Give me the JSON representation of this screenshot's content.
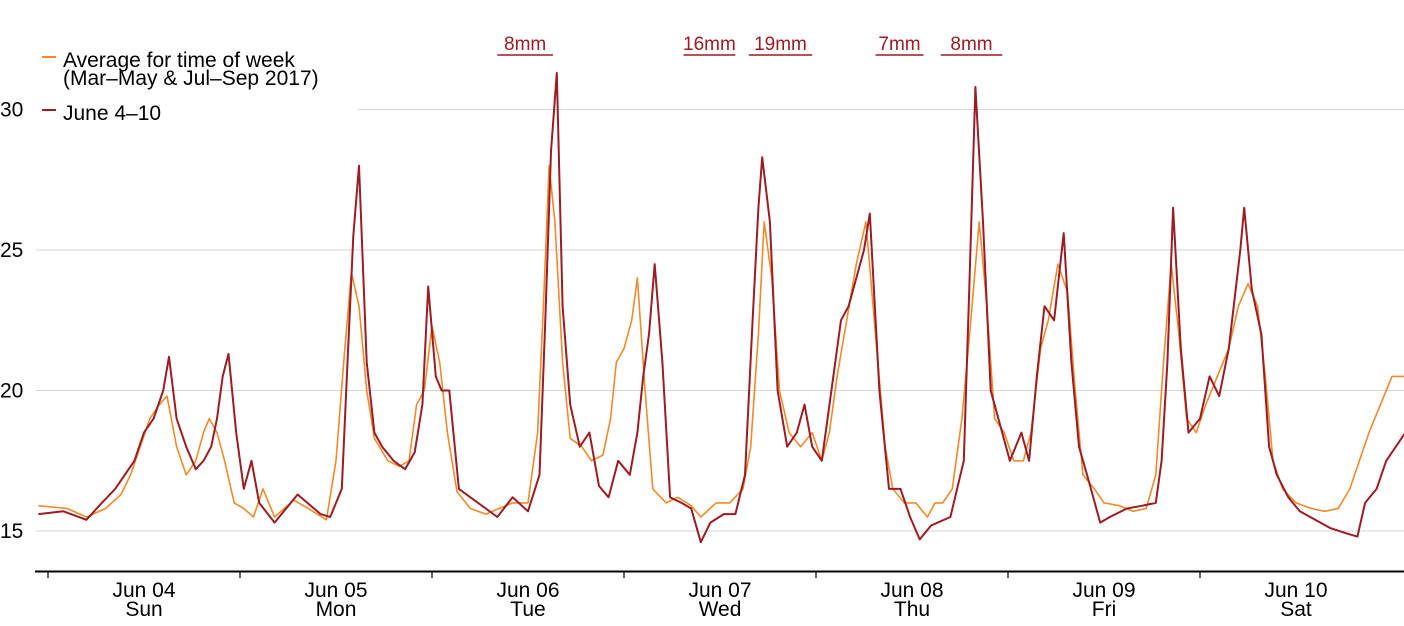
{
  "chart_data": {
    "type": "line",
    "title": "",
    "xlabel": "",
    "ylabel": "",
    "ylim": [
      13.6,
      33.5
    ],
    "xlim": [
      -0.58,
      6.65
    ],
    "y_ticks": [
      15,
      20,
      25,
      30
    ],
    "grid": "horizontal",
    "legend_placement": "top-left",
    "x_ticks": [
      {
        "x": 0,
        "date": "Jun 04",
        "day": "Sun"
      },
      {
        "x": 1,
        "date": "Jun 05",
        "day": "Mon"
      },
      {
        "x": 2,
        "date": "Jun 06",
        "day": "Tue"
      },
      {
        "x": 3,
        "date": "Jun 07",
        "day": "Wed"
      },
      {
        "x": 4,
        "date": "Jun 08",
        "day": "Thu"
      },
      {
        "x": 5,
        "date": "Jun 09",
        "day": "Fri"
      },
      {
        "x": 6,
        "date": "Jun 10",
        "day": "Sat"
      }
    ],
    "rain_annotations": [
      {
        "label": "8mm",
        "x_start": 1.84,
        "x_end": 2.13
      },
      {
        "label": "16mm",
        "x_start": 2.81,
        "x_end": 3.08
      },
      {
        "label": "19mm",
        "x_start": 3.15,
        "x_end": 3.48
      },
      {
        "label": "7mm",
        "x_start": 3.81,
        "x_end": 4.06
      },
      {
        "label": "8mm",
        "x_start": 4.15,
        "x_end": 4.47
      }
    ],
    "series": [
      {
        "name": "Average for time of week",
        "name_line2": "(Mar–May & Jul–Sep 2017)",
        "color": "#f08a2c",
        "points": [
          [
            -0.55,
            15.9
          ],
          [
            -0.4,
            15.8
          ],
          [
            -0.3,
            15.5
          ],
          [
            -0.2,
            15.8
          ],
          [
            -0.12,
            16.3
          ],
          [
            -0.07,
            17.0
          ],
          [
            -0.02,
            18.0
          ],
          [
            0.03,
            19.0
          ],
          [
            0.08,
            19.5
          ],
          [
            0.12,
            19.8
          ],
          [
            0.17,
            18.0
          ],
          [
            0.22,
            17.0
          ],
          [
            0.27,
            17.5
          ],
          [
            0.31,
            18.5
          ],
          [
            0.34,
            19.0
          ],
          [
            0.38,
            18.5
          ],
          [
            0.42,
            17.5
          ],
          [
            0.47,
            16.0
          ],
          [
            0.52,
            15.8
          ],
          [
            0.57,
            15.5
          ],
          [
            0.62,
            16.5
          ],
          [
            0.68,
            15.5
          ],
          [
            0.78,
            16.1
          ],
          [
            0.88,
            15.7
          ],
          [
            0.95,
            15.4
          ],
          [
            1.0,
            17.5
          ],
          [
            1.04,
            21.0
          ],
          [
            1.08,
            24.2
          ],
          [
            1.12,
            23.0
          ],
          [
            1.16,
            20.0
          ],
          [
            1.2,
            18.3
          ],
          [
            1.27,
            17.5
          ],
          [
            1.33,
            17.3
          ],
          [
            1.38,
            17.5
          ],
          [
            1.42,
            19.5
          ],
          [
            1.46,
            20.0
          ],
          [
            1.5,
            22.3
          ],
          [
            1.54,
            21.0
          ],
          [
            1.58,
            18.5
          ],
          [
            1.63,
            16.4
          ],
          [
            1.7,
            15.8
          ],
          [
            1.78,
            15.6
          ],
          [
            1.85,
            15.8
          ],
          [
            1.92,
            16.0
          ],
          [
            2.0,
            16.0
          ],
          [
            2.05,
            18.5
          ],
          [
            2.08,
            23.0
          ],
          [
            2.11,
            28.0
          ],
          [
            2.14,
            26.0
          ],
          [
            2.18,
            21.0
          ],
          [
            2.22,
            18.3
          ],
          [
            2.28,
            18.0
          ],
          [
            2.33,
            17.5
          ],
          [
            2.39,
            17.7
          ],
          [
            2.43,
            19.0
          ],
          [
            2.46,
            21.0
          ],
          [
            2.5,
            21.5
          ],
          [
            2.54,
            22.5
          ],
          [
            2.57,
            24.0
          ],
          [
            2.61,
            20.0
          ],
          [
            2.65,
            16.5
          ],
          [
            2.72,
            16.0
          ],
          [
            2.78,
            16.2
          ],
          [
            2.85,
            15.9
          ],
          [
            2.9,
            15.5
          ],
          [
            2.98,
            16.0
          ],
          [
            3.05,
            16.0
          ],
          [
            3.12,
            16.5
          ],
          [
            3.16,
            18.0
          ],
          [
            3.2,
            22.0
          ],
          [
            3.23,
            26.0
          ],
          [
            3.27,
            24.0
          ],
          [
            3.31,
            20.0
          ],
          [
            3.36,
            18.5
          ],
          [
            3.42,
            18.0
          ],
          [
            3.48,
            18.5
          ],
          [
            3.53,
            17.5
          ],
          [
            3.57,
            18.5
          ],
          [
            3.61,
            20.5
          ],
          [
            3.66,
            22.5
          ],
          [
            3.71,
            24.5
          ],
          [
            3.76,
            26.0
          ],
          [
            3.81,
            22.0
          ],
          [
            3.86,
            18.0
          ],
          [
            3.9,
            16.5
          ],
          [
            3.96,
            16.0
          ],
          [
            4.02,
            16.0
          ],
          [
            4.08,
            15.5
          ],
          [
            4.12,
            16.0
          ],
          [
            4.16,
            16.0
          ],
          [
            4.21,
            16.5
          ],
          [
            4.26,
            19.0
          ],
          [
            4.3,
            22.0
          ],
          [
            4.35,
            26.0
          ],
          [
            4.39,
            23.0
          ],
          [
            4.43,
            19.0
          ],
          [
            4.48,
            18.5
          ],
          [
            4.53,
            17.5
          ],
          [
            4.58,
            17.5
          ],
          [
            4.62,
            18.5
          ],
          [
            4.67,
            21.5
          ],
          [
            4.71,
            22.5
          ],
          [
            4.76,
            24.5
          ],
          [
            4.81,
            23.5
          ],
          [
            4.85,
            20.0
          ],
          [
            4.89,
            17.0
          ],
          [
            4.95,
            16.5
          ],
          [
            5.0,
            16.0
          ],
          [
            5.08,
            15.9
          ],
          [
            5.15,
            15.7
          ],
          [
            5.22,
            15.8
          ],
          [
            5.27,
            17.0
          ],
          [
            5.31,
            21.0
          ],
          [
            5.35,
            24.5
          ],
          [
            5.39,
            22.0
          ],
          [
            5.43,
            19.0
          ],
          [
            5.48,
            18.5
          ],
          [
            5.53,
            19.5
          ],
          [
            5.59,
            20.5
          ],
          [
            5.65,
            21.5
          ],
          [
            5.7,
            23.0
          ],
          [
            5.75,
            23.8
          ],
          [
            5.8,
            23.0
          ],
          [
            5.84,
            20.5
          ],
          [
            5.88,
            17.5
          ],
          [
            5.93,
            16.5
          ],
          [
            6.0,
            16.0
          ],
          [
            6.08,
            15.8
          ],
          [
            6.15,
            15.7
          ],
          [
            6.22,
            15.8
          ],
          [
            6.28,
            16.5
          ],
          [
            6.33,
            17.5
          ],
          [
            6.38,
            18.5
          ],
          [
            6.44,
            19.5
          ],
          [
            6.5,
            20.5
          ],
          [
            6.58,
            20.5
          ],
          [
            6.63,
            19.0
          ],
          [
            6.68,
            18.5
          ],
          [
            6.72,
            18.0
          ],
          [
            6.78,
            17.5
          ],
          [
            6.84,
            17.0
          ],
          [
            6.9,
            16.5
          ],
          [
            6.96,
            16.2
          ],
          [
            7.02,
            15.7
          ],
          [
            7.08,
            15.6
          ],
          [
            7.11,
            16.0
          ]
        ]
      },
      {
        "name": "June 4–10",
        "color": "#9b1c23",
        "points": [
          [
            -0.55,
            15.6
          ],
          [
            -0.42,
            15.7
          ],
          [
            -0.3,
            15.4
          ],
          [
            -0.22,
            16.0
          ],
          [
            -0.15,
            16.5
          ],
          [
            -0.1,
            17.0
          ],
          [
            -0.05,
            17.5
          ],
          [
            0.0,
            18.5
          ],
          [
            0.05,
            19.0
          ],
          [
            0.1,
            20.0
          ],
          [
            0.13,
            21.2
          ],
          [
            0.17,
            19.0
          ],
          [
            0.22,
            18.0
          ],
          [
            0.27,
            17.2
          ],
          [
            0.31,
            17.5
          ],
          [
            0.35,
            18.0
          ],
          [
            0.38,
            19.0
          ],
          [
            0.41,
            20.5
          ],
          [
            0.44,
            21.3
          ],
          [
            0.48,
            18.5
          ],
          [
            0.52,
            16.5
          ],
          [
            0.56,
            17.5
          ],
          [
            0.6,
            16.0
          ],
          [
            0.68,
            15.3
          ],
          [
            0.8,
            16.3
          ],
          [
            0.92,
            15.6
          ],
          [
            0.97,
            15.5
          ],
          [
            1.03,
            16.5
          ],
          [
            1.06,
            21.0
          ],
          [
            1.09,
            25.5
          ],
          [
            1.12,
            28.0
          ],
          [
            1.16,
            21.0
          ],
          [
            1.2,
            18.5
          ],
          [
            1.24,
            18.0
          ],
          [
            1.3,
            17.5
          ],
          [
            1.36,
            17.2
          ],
          [
            1.41,
            17.8
          ],
          [
            1.45,
            19.5
          ],
          [
            1.48,
            23.7
          ],
          [
            1.52,
            20.5
          ],
          [
            1.55,
            20.0
          ],
          [
            1.59,
            20.0
          ],
          [
            1.64,
            16.5
          ],
          [
            1.7,
            16.2
          ],
          [
            1.78,
            15.8
          ],
          [
            1.84,
            15.5
          ],
          [
            1.92,
            16.2
          ],
          [
            2.0,
            15.7
          ],
          [
            2.06,
            17.0
          ],
          [
            2.09,
            22.5
          ],
          [
            2.12,
            28.5
          ],
          [
            2.15,
            31.3
          ],
          [
            2.18,
            23.0
          ],
          [
            2.22,
            19.5
          ],
          [
            2.27,
            18.0
          ],
          [
            2.32,
            18.5
          ],
          [
            2.37,
            16.6
          ],
          [
            2.42,
            16.2
          ],
          [
            2.47,
            17.5
          ],
          [
            2.53,
            17.0
          ],
          [
            2.57,
            18.5
          ],
          [
            2.6,
            20.5
          ],
          [
            2.63,
            22.0
          ],
          [
            2.66,
            24.5
          ],
          [
            2.7,
            21.0
          ],
          [
            2.74,
            16.2
          ],
          [
            2.8,
            16.0
          ],
          [
            2.85,
            15.8
          ],
          [
            2.9,
            14.6
          ],
          [
            2.95,
            15.3
          ],
          [
            3.02,
            15.6
          ],
          [
            3.08,
            15.6
          ],
          [
            3.13,
            17.0
          ],
          [
            3.17,
            22.5
          ],
          [
            3.2,
            26.5
          ],
          [
            3.22,
            28.3
          ],
          [
            3.26,
            26.0
          ],
          [
            3.3,
            20.0
          ],
          [
            3.35,
            18.0
          ],
          [
            3.4,
            18.5
          ],
          [
            3.44,
            19.5
          ],
          [
            3.48,
            18.0
          ],
          [
            3.53,
            17.5
          ],
          [
            3.58,
            20.0
          ],
          [
            3.63,
            22.5
          ],
          [
            3.67,
            23.0
          ],
          [
            3.71,
            24.0
          ],
          [
            3.75,
            25.0
          ],
          [
            3.78,
            26.3
          ],
          [
            3.83,
            20.0
          ],
          [
            3.88,
            16.5
          ],
          [
            3.94,
            16.5
          ],
          [
            3.99,
            15.5
          ],
          [
            4.04,
            14.7
          ],
          [
            4.1,
            15.2
          ],
          [
            4.2,
            15.5
          ],
          [
            4.27,
            17.5
          ],
          [
            4.3,
            24.0
          ],
          [
            4.33,
            30.8
          ],
          [
            4.37,
            26.0
          ],
          [
            4.41,
            20.0
          ],
          [
            4.47,
            18.5
          ],
          [
            4.51,
            17.5
          ],
          [
            4.57,
            18.5
          ],
          [
            4.61,
            17.5
          ],
          [
            4.65,
            20.5
          ],
          [
            4.69,
            23.0
          ],
          [
            4.74,
            22.5
          ],
          [
            4.79,
            25.6
          ],
          [
            4.83,
            21.0
          ],
          [
            4.87,
            18.0
          ],
          [
            4.92,
            16.8
          ],
          [
            4.98,
            15.3
          ],
          [
            5.03,
            15.5
          ],
          [
            5.12,
            15.8
          ],
          [
            5.2,
            15.9
          ],
          [
            5.27,
            16.0
          ],
          [
            5.3,
            17.5
          ],
          [
            5.33,
            21.0
          ],
          [
            5.36,
            26.5
          ],
          [
            5.4,
            21.5
          ],
          [
            5.44,
            18.5
          ],
          [
            5.5,
            19.0
          ],
          [
            5.55,
            20.5
          ],
          [
            5.6,
            19.8
          ],
          [
            5.65,
            21.5
          ],
          [
            5.71,
            25.0
          ],
          [
            5.73,
            26.5
          ],
          [
            5.77,
            23.6
          ],
          [
            5.82,
            22.0
          ],
          [
            5.86,
            18.0
          ],
          [
            5.9,
            17.0
          ],
          [
            5.96,
            16.2
          ],
          [
            6.02,
            15.7
          ],
          [
            6.1,
            15.4
          ],
          [
            6.18,
            15.1
          ],
          [
            6.27,
            14.9
          ],
          [
            6.32,
            14.8
          ],
          [
            6.36,
            16.0
          ],
          [
            6.42,
            16.5
          ],
          [
            6.47,
            17.5
          ],
          [
            6.52,
            18.0
          ],
          [
            6.57,
            18.5
          ],
          [
            6.62,
            17.5
          ],
          [
            6.67,
            17.5
          ],
          [
            6.72,
            16.5
          ],
          [
            6.76,
            16.2
          ],
          [
            6.8,
            17.0
          ],
          [
            6.85,
            20.5
          ],
          [
            6.88,
            21.0
          ],
          [
            6.92,
            18.5
          ],
          [
            6.98,
            17.5
          ],
          [
            7.04,
            18.0
          ],
          [
            7.08,
            19.7
          ],
          [
            7.12,
            17.2
          ]
        ]
      }
    ]
  }
}
